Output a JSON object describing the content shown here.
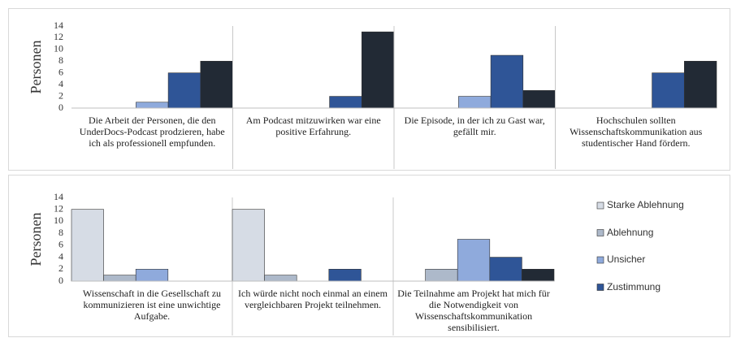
{
  "chart_data": [
    {
      "type": "bar",
      "y_label": "Personen",
      "categories": [
        "Die Arbeit der Personen, die den UnderDocs-Podcast prodzieren, habe ich als professionell empfunden.",
        "Am Podcast mitzuwirken war eine positive Erfahrung.",
        "Die Episode, in der ich zu Gast war, gefällt mir.",
        "Hochschulen sollten Wissenschaftskommunikation aus studentischer Hand fördern."
      ],
      "series": [
        {
          "color": "#d6dce5",
          "values": [
            0,
            0,
            0,
            0
          ]
        },
        {
          "color": "#adb9ca",
          "values": [
            0,
            0,
            0,
            0
          ]
        },
        {
          "color": "#8faadc",
          "values": [
            1,
            0,
            2,
            0
          ]
        },
        {
          "color": "#2f5597",
          "values": [
            6,
            2,
            9,
            6
          ]
        },
        {
          "color": "#222a35",
          "values": [
            8,
            13,
            3,
            8
          ]
        }
      ],
      "ylim": [
        0,
        14
      ],
      "yticks": [
        0,
        2,
        4,
        6,
        8,
        10,
        12,
        14
      ],
      "grid": false
    },
    {
      "type": "bar",
      "y_label": "Personen",
      "categories": [
        "Wissenschaft in die Gesellschaft zu kommunizieren ist eine unwichtige Aufgabe.",
        "Ich würde nicht noch einmal an einem vergleichbaren Projekt teilnehmen.",
        "Die Teilnahme am Projekt hat mich für die Notwendigkeit von Wissenschaftskommunikation sensibilisiert."
      ],
      "series": [
        {
          "name": "Starke Ablehnung",
          "color": "#d6dce5",
          "values": [
            12,
            12,
            0
          ]
        },
        {
          "name": "Ablehnung",
          "color": "#adb9ca",
          "values": [
            1,
            1,
            2
          ]
        },
        {
          "name": "Unsicher",
          "color": "#8faadc",
          "values": [
            2,
            0,
            7
          ]
        },
        {
          "name": "Zustimmung",
          "color": "#2f5597",
          "values": [
            0,
            2,
            4
          ]
        },
        {
          "color": "#222a35",
          "values": [
            0,
            0,
            2
          ]
        }
      ],
      "ylim": [
        0,
        14
      ],
      "yticks": [
        0,
        2,
        4,
        6,
        8,
        10,
        12,
        14
      ],
      "grid": false,
      "legend": "right"
    }
  ]
}
